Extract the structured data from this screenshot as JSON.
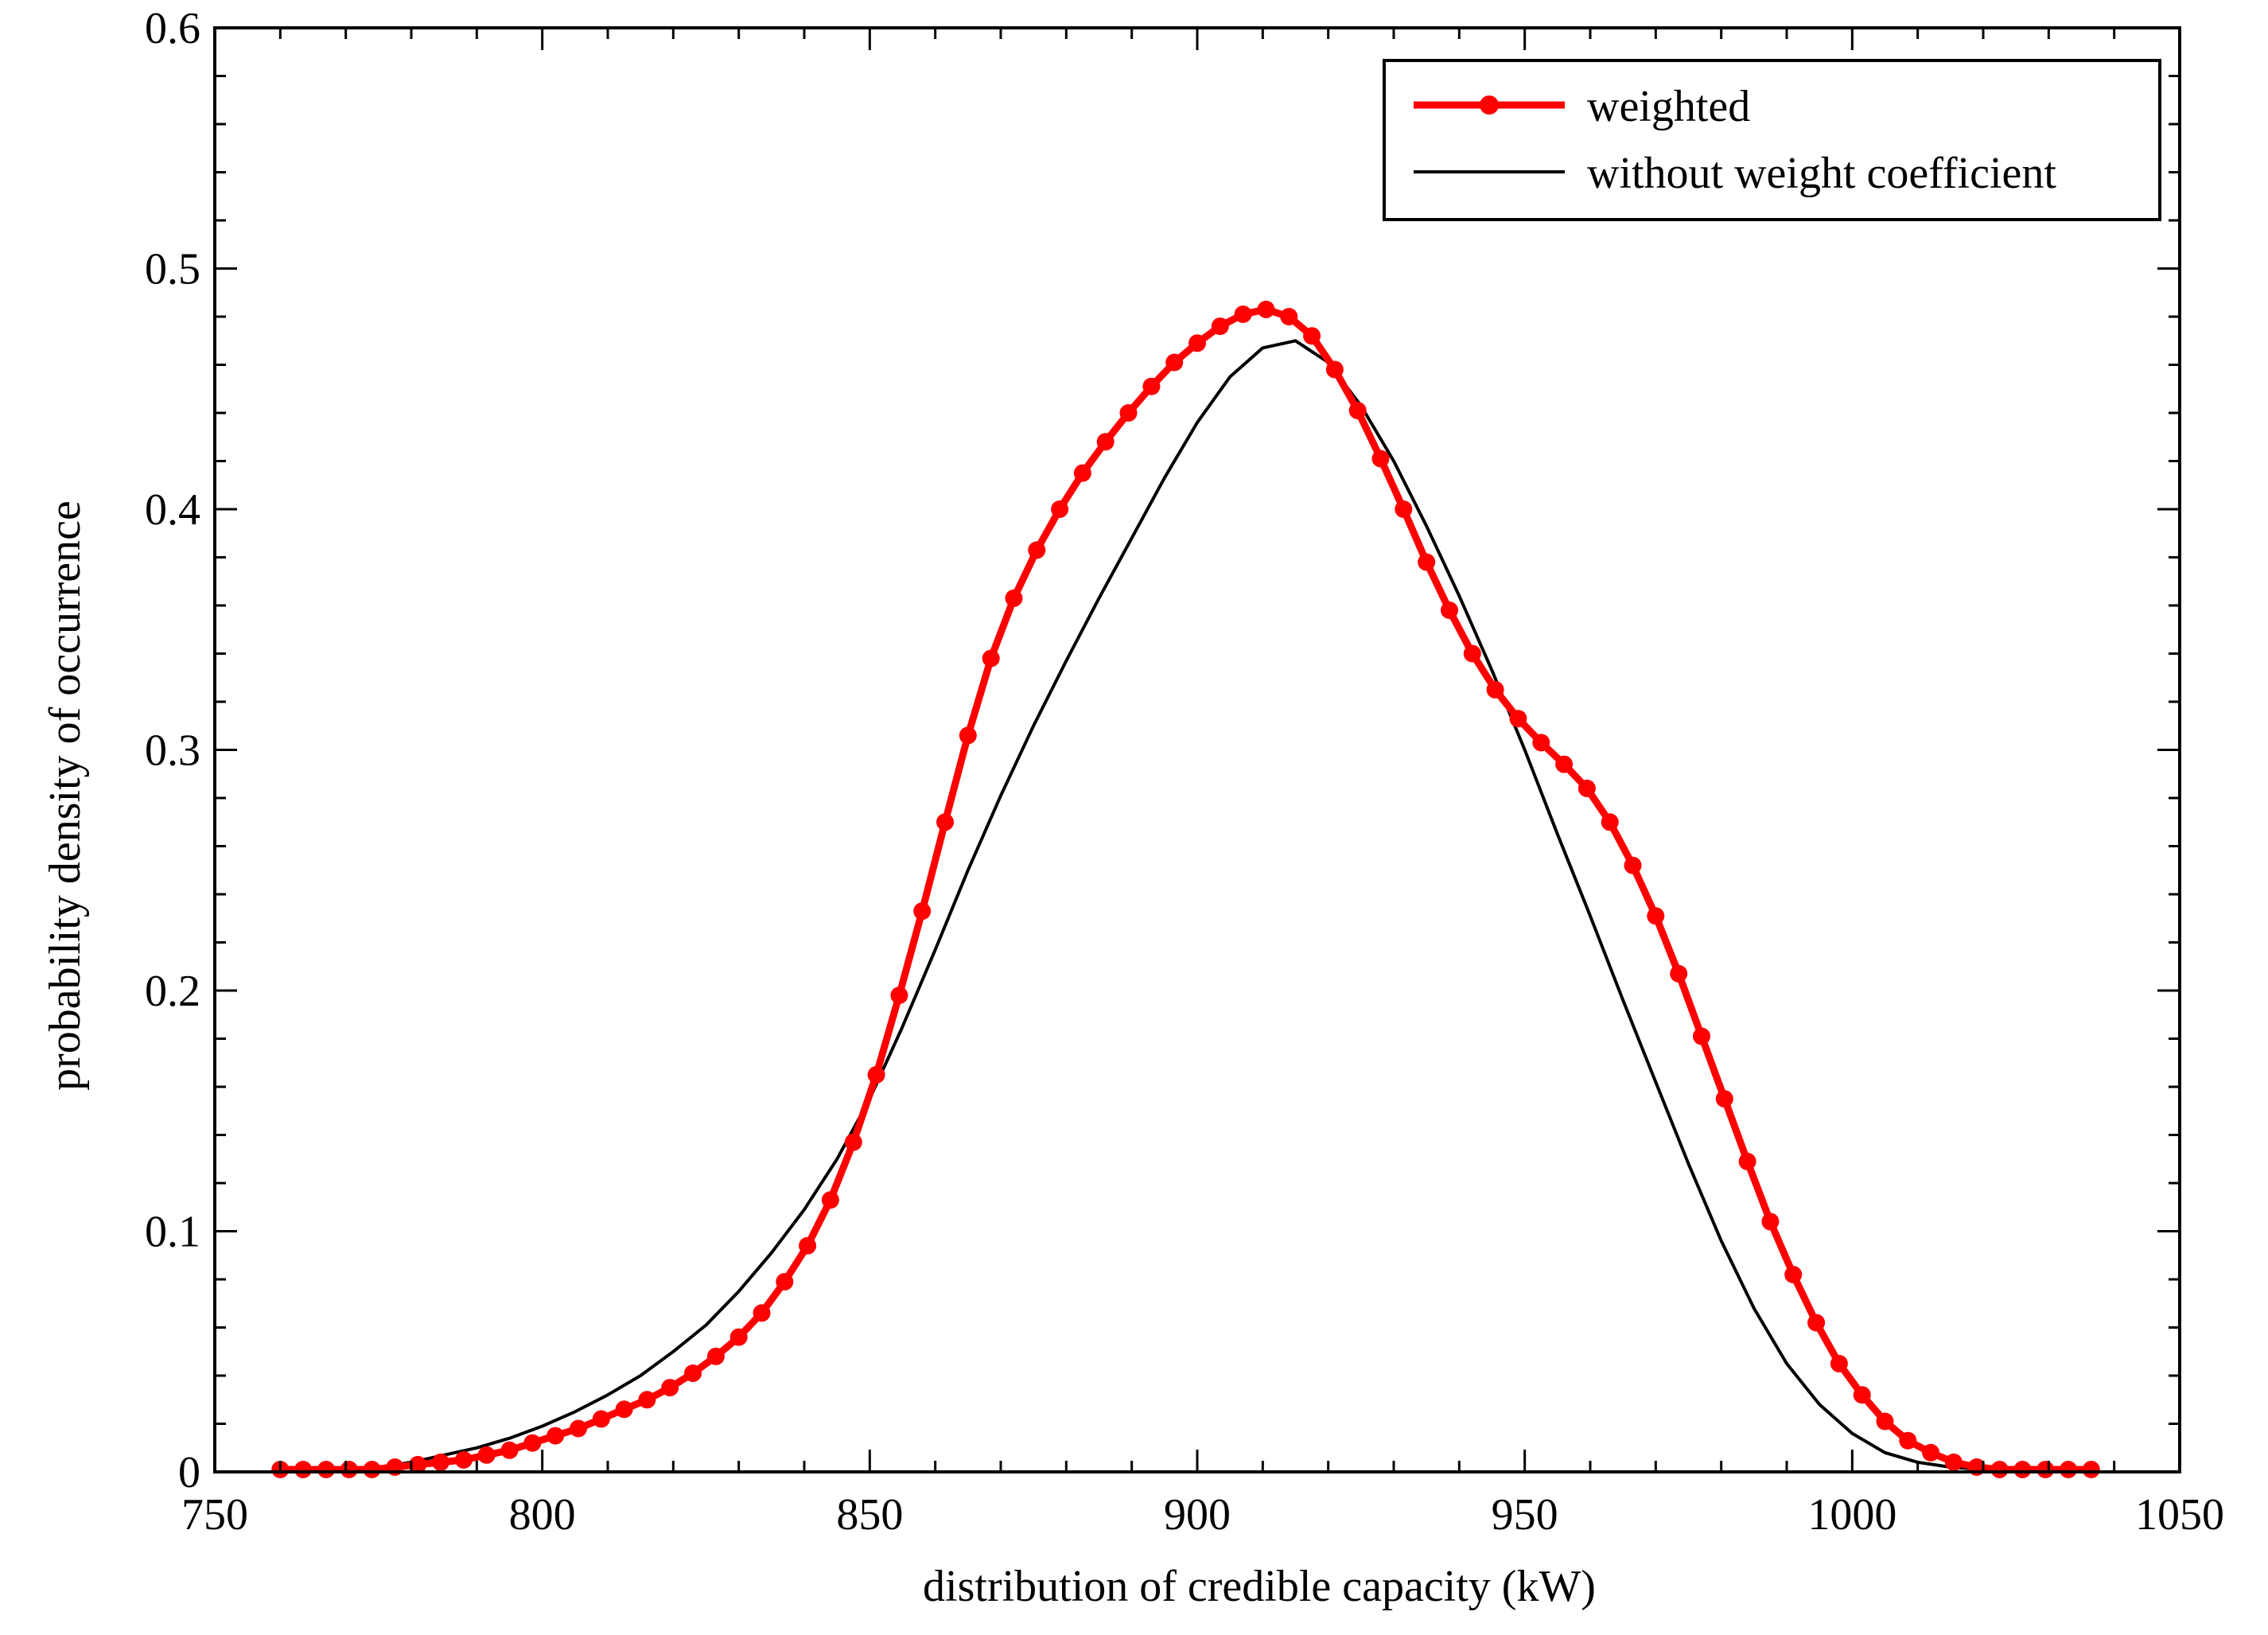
{
  "chart_data": {
    "type": "line",
    "title": "",
    "xlabel": "distribution of credible capacity (kW)",
    "ylabel": "probability density of occurrence",
    "xlim": [
      750,
      1050
    ],
    "ylim": [
      0,
      0.6
    ],
    "xticks": [
      750,
      800,
      850,
      900,
      950,
      1000,
      1050
    ],
    "yticks": [
      0,
      0.1,
      0.2,
      0.3,
      0.4,
      0.5,
      0.6
    ],
    "xtick_labels": [
      "750",
      "800",
      "850",
      "900",
      "950",
      "1000",
      "1050"
    ],
    "ytick_labels": [
      "0",
      "0.1",
      "0.2",
      "0.3",
      "0.4",
      "0.5",
      "0.6"
    ],
    "grid": false,
    "legend_position": "top-right",
    "series": [
      {
        "name": "weighted",
        "color": "#ff0000",
        "marker": "circle",
        "x": [
          760,
          763.5,
          767,
          770.5,
          774,
          777.5,
          781,
          784.5,
          788,
          791.5,
          795,
          798.5,
          802,
          805.5,
          809,
          812.5,
          816,
          819.5,
          823,
          826.5,
          830,
          833.5,
          837,
          840.5,
          844,
          847.5,
          851,
          854.5,
          858,
          861.5,
          865,
          868.5,
          872,
          875.5,
          879,
          882.5,
          886,
          889.5,
          893,
          896.5,
          900,
          903.5,
          907,
          910.5,
          914,
          917.5,
          921,
          924.5,
          928,
          931.5,
          935,
          938.5,
          942,
          945.5,
          949,
          952.5,
          956,
          959.5,
          963,
          966.5,
          970,
          973.5,
          977,
          980.5,
          984,
          987.5,
          991,
          994.5,
          998,
          1001.5,
          1005,
          1008.5,
          1012,
          1015.5,
          1019,
          1022.5,
          1026,
          1029.5,
          1033,
          1036.5
        ],
        "y": [
          0.001,
          0.001,
          0.001,
          0.001,
          0.001,
          0.002,
          0.003,
          0.004,
          0.005,
          0.007,
          0.009,
          0.012,
          0.015,
          0.018,
          0.022,
          0.026,
          0.03,
          0.035,
          0.041,
          0.048,
          0.056,
          0.066,
          0.079,
          0.094,
          0.113,
          0.137,
          0.165,
          0.198,
          0.233,
          0.27,
          0.306,
          0.338,
          0.363,
          0.383,
          0.4,
          0.415,
          0.428,
          0.44,
          0.451,
          0.461,
          0.469,
          0.476,
          0.481,
          0.483,
          0.48,
          0.472,
          0.458,
          0.441,
          0.421,
          0.4,
          0.378,
          0.358,
          0.34,
          0.325,
          0.313,
          0.303,
          0.294,
          0.284,
          0.27,
          0.252,
          0.231,
          0.207,
          0.181,
          0.155,
          0.129,
          0.104,
          0.082,
          0.062,
          0.045,
          0.032,
          0.021,
          0.013,
          0.008,
          0.004,
          0.002,
          0.001,
          0.001,
          0.001,
          0.001,
          0.001
        ]
      },
      {
        "name": "without weight coefficient",
        "color": "#000000",
        "marker": "none",
        "x": [
          760,
          770,
          775,
          780,
          785,
          790,
          795,
          800,
          805,
          810,
          815,
          820,
          825,
          830,
          835,
          840,
          845,
          850,
          855,
          860,
          865,
          870,
          875,
          880,
          885,
          890,
          895,
          900,
          905,
          910,
          915,
          920,
          925,
          930,
          935,
          940,
          945,
          950,
          955,
          960,
          965,
          970,
          975,
          980,
          985,
          990,
          995,
          1000,
          1005,
          1010,
          1015,
          1020,
          1025,
          1030,
          1036
        ],
        "y": [
          0.001,
          0.001,
          0.002,
          0.004,
          0.007,
          0.01,
          0.014,
          0.019,
          0.025,
          0.032,
          0.04,
          0.05,
          0.061,
          0.075,
          0.091,
          0.109,
          0.13,
          0.155,
          0.185,
          0.217,
          0.25,
          0.281,
          0.31,
          0.337,
          0.363,
          0.388,
          0.413,
          0.436,
          0.455,
          0.467,
          0.47,
          0.461,
          0.443,
          0.42,
          0.393,
          0.364,
          0.333,
          0.3,
          0.265,
          0.231,
          0.196,
          0.162,
          0.128,
          0.096,
          0.068,
          0.045,
          0.028,
          0.016,
          0.008,
          0.004,
          0.002,
          0.001,
          0.001,
          0.001,
          0.001
        ]
      }
    ]
  }
}
